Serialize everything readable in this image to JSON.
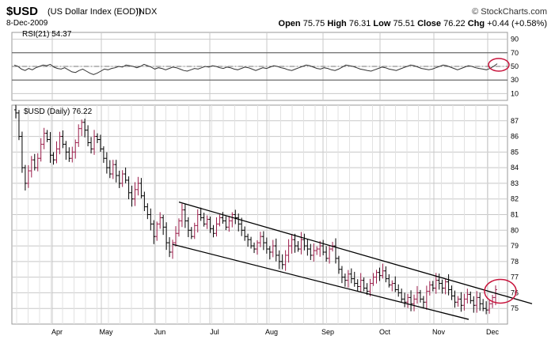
{
  "header": {
    "symbol": "$USD",
    "full_name": "(US Dollar Index (EOD))",
    "exchange": "INDX",
    "brand": "© StockCharts.com",
    "date": "8-Dec-2009",
    "open_label": "Open",
    "open": "75.75",
    "high_label": "High",
    "high": "76.31",
    "low_label": "Low",
    "low": "75.51",
    "close_label": "Close",
    "close": "76.22",
    "chg_label": "Chg",
    "chg": "+0.44 (+0.58%)"
  },
  "chart_data": [
    {
      "type": "line",
      "panel": "rsi",
      "title": "RSI(21) 54.37",
      "ylim": [
        0,
        100
      ],
      "y_ticks": [
        10,
        30,
        50,
        70,
        90
      ],
      "reference_lines": [
        30,
        50,
        70
      ],
      "grid": true,
      "series": [
        {
          "values": [
            52,
            50,
            46,
            44,
            47,
            45,
            48,
            50,
            52,
            51,
            53,
            49,
            47,
            46,
            48,
            45,
            42,
            41,
            44,
            46,
            43,
            40,
            38,
            40,
            43,
            46,
            45,
            47,
            48,
            50,
            49,
            52,
            51,
            50,
            48,
            50,
            53,
            51,
            49,
            46,
            48,
            47,
            45,
            47,
            49,
            48,
            46,
            44,
            43,
            45,
            47,
            46,
            48,
            50,
            49,
            51,
            50,
            48,
            47,
            49,
            48,
            46,
            45,
            47,
            49,
            48,
            46,
            44,
            46,
            48,
            47,
            49,
            51,
            50,
            48,
            47,
            45,
            44,
            46,
            48,
            50,
            52,
            51,
            49,
            47,
            46,
            48,
            47,
            45,
            44,
            46,
            49,
            52,
            51,
            50,
            48,
            46,
            45,
            44,
            43,
            45,
            47,
            49,
            48,
            46,
            45,
            44,
            46,
            48,
            50,
            52,
            51,
            49,
            47,
            46,
            45,
            46,
            48,
            50,
            52,
            51,
            49,
            47,
            45,
            47,
            49,
            51,
            50,
            48,
            47,
            46,
            45,
            47,
            50,
            54
          ]
        }
      ]
    },
    {
      "type": "ohlc",
      "panel": "price",
      "title": "$USD (Daily) 76.22",
      "ylim": [
        74.0,
        88.0
      ],
      "y_ticks": [
        75,
        76,
        77,
        78,
        79,
        80,
        81,
        82,
        83,
        84,
        85,
        86,
        87
      ],
      "x_labels": [
        "Apr",
        "May",
        "Jun",
        "Jul",
        "Aug",
        "Sep",
        "Oct",
        "Nov",
        "Dec"
      ],
      "grid": true,
      "closes": [
        87.5,
        86.0,
        84.0,
        83.0,
        83.8,
        84.5,
        84.0,
        84.6,
        85.5,
        86.2,
        85.8,
        84.8,
        84.5,
        85.2,
        86.0,
        85.5,
        85.0,
        84.6,
        85.0,
        85.6,
        86.5,
        86.9,
        86.4,
        85.6,
        85.2,
        86.0,
        85.8,
        85.2,
        84.6,
        84.0,
        83.6,
        84.2,
        83.5,
        83.0,
        83.6,
        83.2,
        82.4,
        82.0,
        82.6,
        83.0,
        82.2,
        81.5,
        81.0,
        80.4,
        79.6,
        80.4,
        80.8,
        80.2,
        79.2,
        78.6,
        79.2,
        79.8,
        80.6,
        81.3,
        80.6,
        80.0,
        79.6,
        80.3,
        81.0,
        80.8,
        80.4,
        80.7,
        80.1,
        79.8,
        80.4,
        80.8,
        80.6,
        80.2,
        80.6,
        81.0,
        80.8,
        80.4,
        80.0,
        79.6,
        79.4,
        79.0,
        78.8,
        79.2,
        79.6,
        79.2,
        78.8,
        78.6,
        79.0,
        78.4,
        78.0,
        77.8,
        78.4,
        79.0,
        79.4,
        79.0,
        78.8,
        79.4,
        79.0,
        78.8,
        78.4,
        78.7,
        78.8,
        79.0,
        78.6,
        78.2,
        78.8,
        79.0,
        78.2,
        77.5,
        77.0,
        76.8,
        77.2,
        76.9,
        76.6,
        76.4,
        76.8,
        76.3,
        76.1,
        76.6,
        77.0,
        77.3,
        77.1,
        77.4,
        76.9,
        76.5,
        76.6,
        76.2,
        76.0,
        75.6,
        75.4,
        75.7,
        75.3,
        75.6,
        76.0,
        75.6,
        75.4,
        76.1,
        76.5,
        76.3,
        76.8,
        76.6,
        76.3,
        76.7,
        76.2,
        75.8,
        75.4,
        75.6,
        75.2,
        75.6,
        75.9,
        75.5,
        75.2,
        75.7,
        75.3,
        75.0,
        74.9,
        75.3,
        75.7,
        76.2
      ]
    }
  ],
  "annotations": {
    "trend_lines": [
      {
        "from": [
          "Jun start",
          81.8
        ],
        "to": [
          "Dec end",
          75.3
        ]
      },
      {
        "from": [
          "Jun start",
          79.1
        ],
        "to": [
          "Dec",
          74.3
        ]
      }
    ],
    "circles": [
      "rsi-latest",
      "price-channel-break"
    ]
  },
  "colors": {
    "grid": "#c8c8c8",
    "bar_down": "#000000",
    "bar_up": "#9b1d4a",
    "circle": "#c8143c",
    "rsi_line": "#333333"
  }
}
